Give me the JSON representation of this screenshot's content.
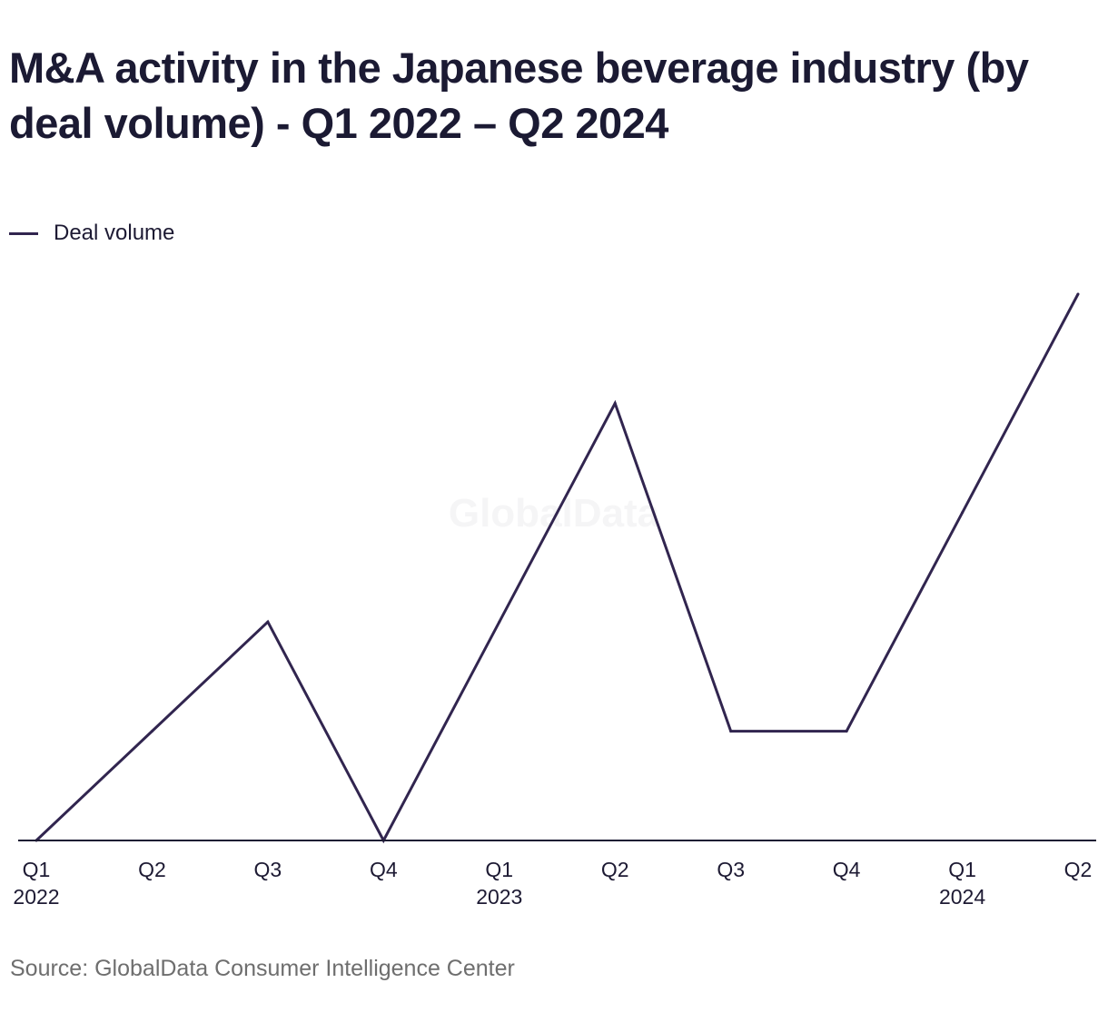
{
  "title": "M&A activity in the Japanese beverage industry (by deal volume) - Q1 2022 – Q2 2024",
  "legend": {
    "label": "Deal volume",
    "color": "#31254f"
  },
  "watermark": "GlobalData",
  "source": "Source: GlobalData Consumer Intelligence Center",
  "chart_data": {
    "type": "line",
    "x": [
      {
        "quarter": "Q1",
        "year": "2022"
      },
      {
        "quarter": "Q2",
        "year": ""
      },
      {
        "quarter": "Q3",
        "year": ""
      },
      {
        "quarter": "Q4",
        "year": ""
      },
      {
        "quarter": "Q1",
        "year": "2023"
      },
      {
        "quarter": "Q2",
        "year": ""
      },
      {
        "quarter": "Q3",
        "year": ""
      },
      {
        "quarter": "Q4",
        "year": ""
      },
      {
        "quarter": "Q1",
        "year": "2024"
      },
      {
        "quarter": "Q2",
        "year": ""
      }
    ],
    "series": [
      {
        "name": "Deal volume",
        "values": [
          0,
          1,
          2,
          0,
          2,
          4,
          1,
          1,
          3,
          5
        ]
      }
    ],
    "ylim": [
      0,
      5
    ],
    "grid": false,
    "legend_position": "top-left",
    "y_axis_labels": false
  }
}
